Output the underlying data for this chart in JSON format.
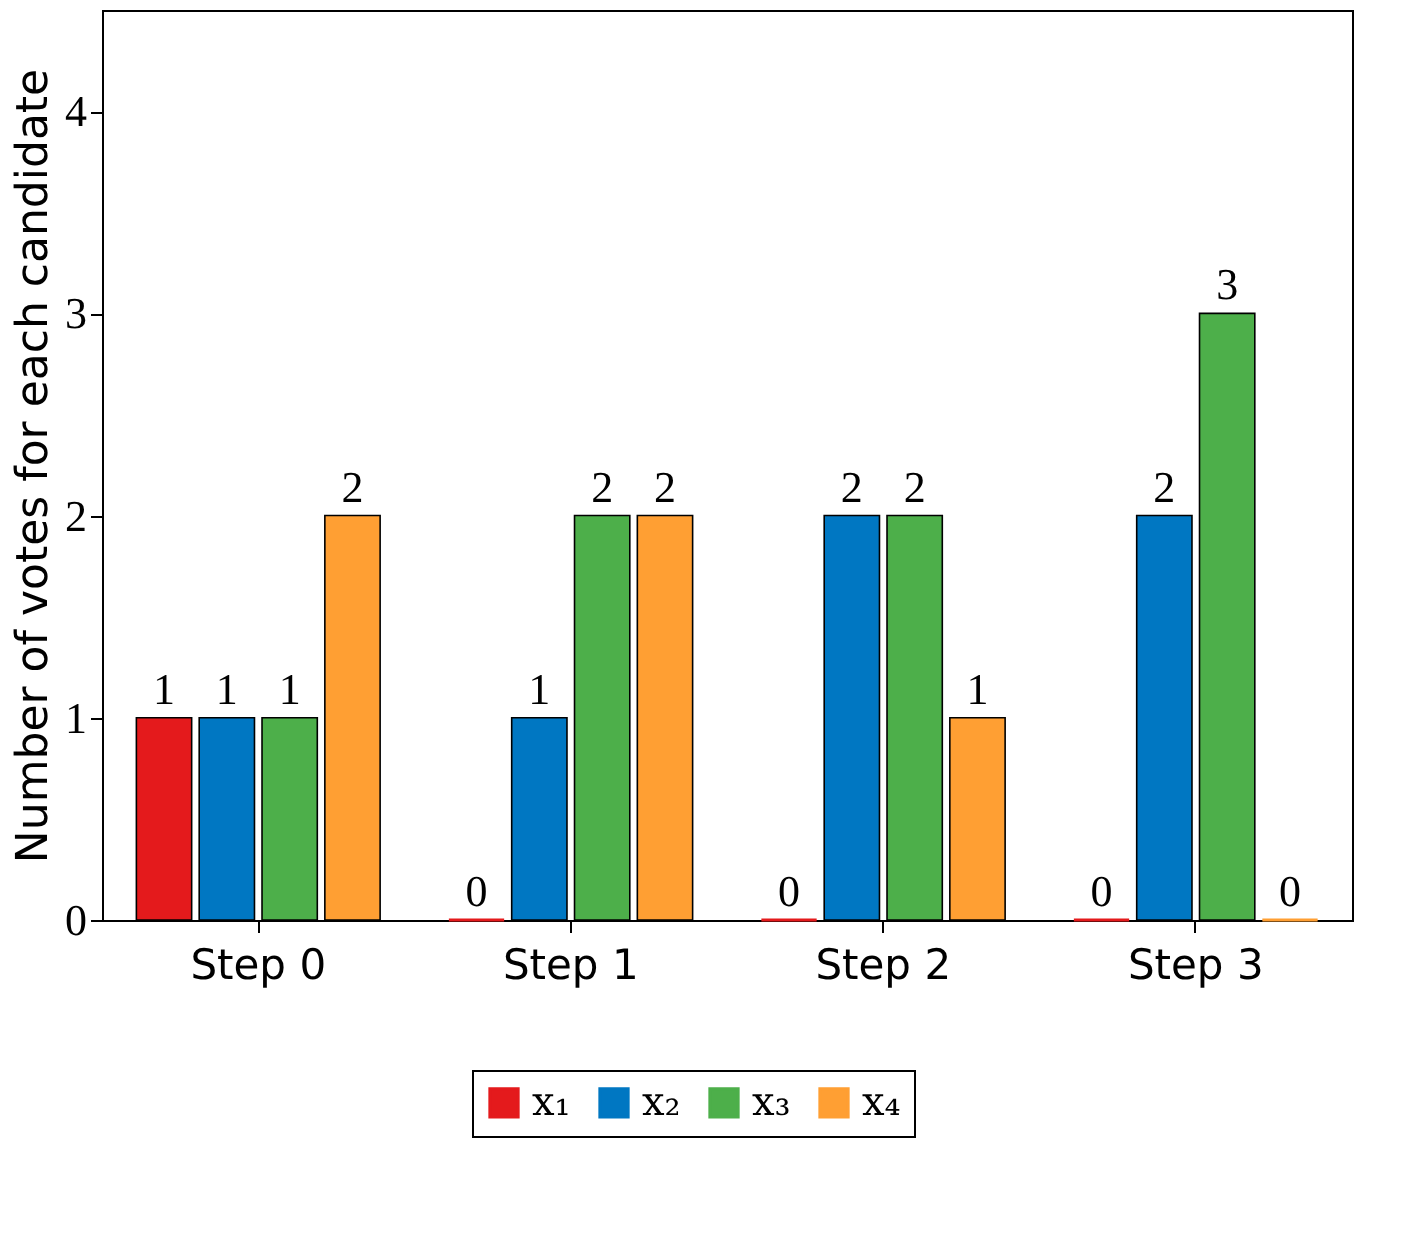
{
  "chart_data": {
    "type": "bar",
    "ylabel": "Number of votes for each candidate",
    "categories": [
      "Step 0",
      "Step 1",
      "Step 2",
      "Step 3"
    ],
    "series": [
      {
        "name": "x₁",
        "color": "#e41a1c",
        "values": [
          1,
          0,
          0,
          0
        ]
      },
      {
        "name": "x₂",
        "color": "#0077c2",
        "values": [
          1,
          1,
          2,
          2
        ]
      },
      {
        "name": "x₃",
        "color": "#4daf4a",
        "values": [
          1,
          2,
          2,
          3
        ]
      },
      {
        "name": "x₄",
        "color": "#ff9f33",
        "values": [
          2,
          2,
          1,
          0
        ]
      }
    ],
    "ylim": [
      0,
      4.5
    ],
    "yticks": [
      0,
      1,
      2,
      3,
      4
    ],
    "data_labels": true,
    "legend": "bottom",
    "grid": false
  }
}
